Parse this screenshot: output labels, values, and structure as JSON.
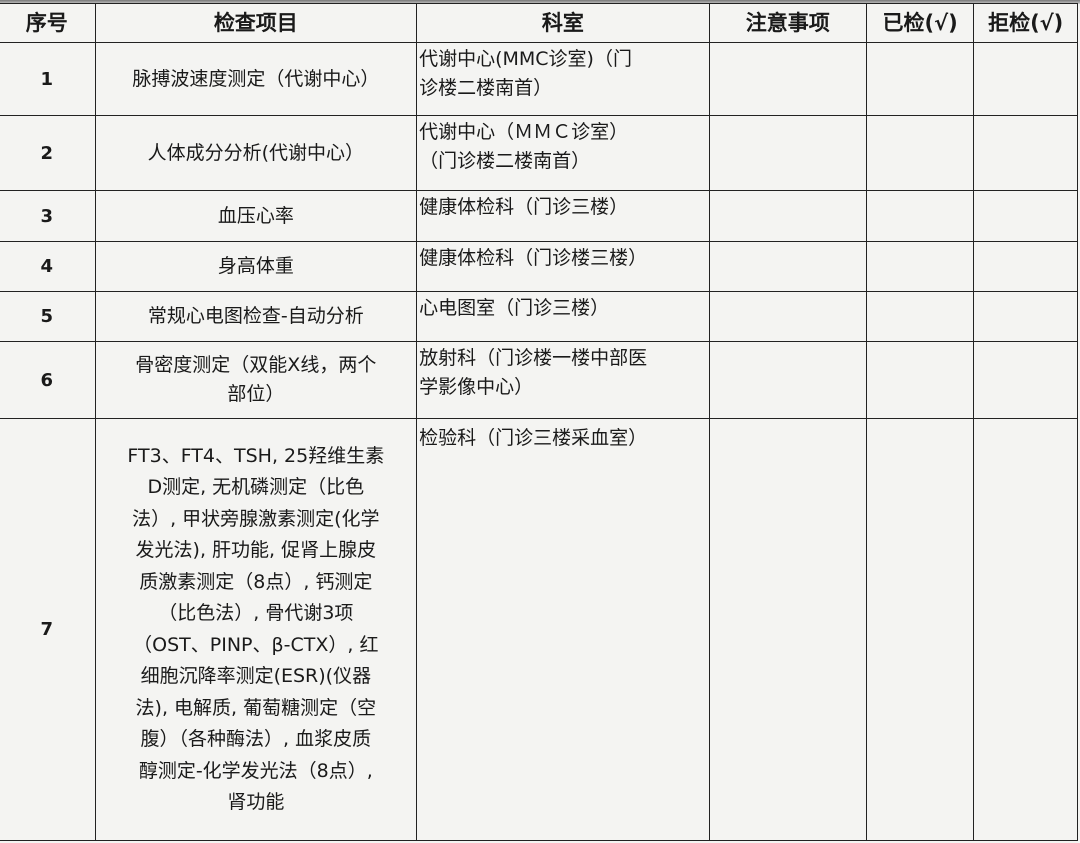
{
  "headers": [
    "序号",
    "检查项目",
    "科室",
    "注意事项",
    "已检(√)",
    "拒检(√)"
  ],
  "rows": [
    {
      "no": "1",
      "item": [
        "脉搏波速度测定（代谢中心）"
      ],
      "dept": [
        "代谢中心(MMC诊室)（门",
        "诊楼二楼南首）"
      ],
      "notes": "",
      "done": "",
      "refused": ""
    },
    {
      "no": "2",
      "item": [
        "人体成分分析(代谢中心）"
      ],
      "dept": [
        "代谢中心（ＭＭＣ诊室）",
        "（门诊楼二楼南首）"
      ],
      "notes": "",
      "done": "",
      "refused": ""
    },
    {
      "no": "3",
      "item": [
        "血压心率"
      ],
      "dept": [
        "健康体检科（门诊三楼）"
      ],
      "notes": "",
      "done": "",
      "refused": ""
    },
    {
      "no": "4",
      "item": [
        "身高体重"
      ],
      "dept": [
        "健康体检科（门诊楼三楼）"
      ],
      "notes": "",
      "done": "",
      "refused": ""
    },
    {
      "no": "5",
      "item": [
        "常规心电图检查-自动分析"
      ],
      "dept": [
        "心电图室（门诊三楼）"
      ],
      "notes": "",
      "done": "",
      "refused": ""
    },
    {
      "no": "6",
      "item": [
        "骨密度测定（双能X线，两个",
        "部位）"
      ],
      "dept": [
        "放射科（门诊楼一楼中部医",
        "学影像中心）"
      ],
      "notes": "",
      "done": "",
      "refused": ""
    },
    {
      "no": "7",
      "item": [
        "FT3、FT4、TSH, 25羟维生素",
        "D测定, 无机磷测定（比色",
        "法）, 甲状旁腺激素测定(化学",
        "发光法), 肝功能, 促肾上腺皮",
        "质激素测定（8点）, 钙测定",
        "（比色法）, 骨代谢3项",
        "（OST、PINP、β-CTX）, 红",
        "细胞沉降率测定(ESR)(仪器",
        "法), 电解质, 葡萄糖测定（空",
        "腹）（各种酶法）, 血浆皮质",
        "醇测定-化学发光法（8点）,",
        "肾功能"
      ],
      "dept": [
        "检验科（门诊三楼采血室）"
      ],
      "notes": "",
      "done": "",
      "refused": ""
    }
  ]
}
